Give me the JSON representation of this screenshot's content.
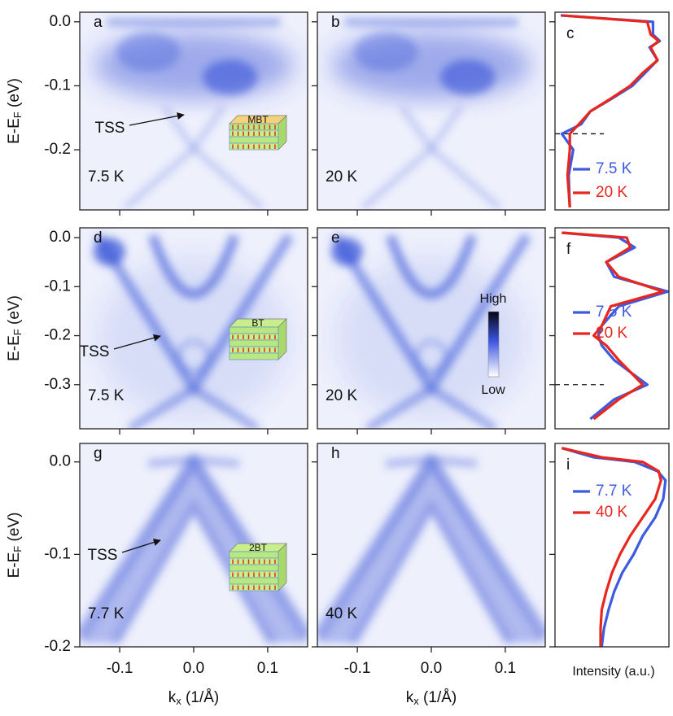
{
  "axes": {
    "ylabel": [
      "E-E",
      "F",
      " (eV)"
    ],
    "xlabel": [
      "k",
      "x",
      " (1/Å)"
    ],
    "intensity_label": "Intensity (a.u.)"
  },
  "chart_data": [
    {
      "type": "image",
      "panel": "a",
      "temperature": "7.5 K",
      "annotation": "TSS",
      "inset": "MBT",
      "xlim": [
        -0.154,
        0.154
      ],
      "ylim": [
        -0.294,
        0.015
      ],
      "xticks": [
        -0.1,
        {
          "value": 0,
          "label": "0.0"
        },
        0.1
      ],
      "yticks": [
        {
          "value": 0,
          "label": "0.0"
        },
        -0.1,
        -0.2
      ],
      "ytick_labels": true
    },
    {
      "type": "image",
      "panel": "b",
      "temperature": "20 K",
      "xlim": [
        -0.154,
        0.154
      ],
      "ylim": [
        -0.294,
        0.015
      ],
      "xticks": [
        -0.1,
        {
          "value": 0,
          "label": "0.0"
        },
        0.1
      ],
      "yticks": [
        {
          "value": 0,
          "label": "0.0"
        },
        -0.1,
        -0.2
      ]
    },
    {
      "type": "line",
      "panel": "c",
      "xlim": [
        0,
        1
      ],
      "ylim": [
        -0.294,
        0.015
      ],
      "yticks": [
        {
          "value": 0,
          "label": "0.0"
        },
        -0.1,
        -0.2
      ],
      "hlines": [
        -0.175
      ],
      "y": [
        0.01,
        0.0,
        -0.02,
        -0.03,
        -0.04,
        -0.06,
        -0.08,
        -0.1,
        -0.12,
        -0.14,
        -0.16,
        -0.175,
        -0.2,
        -0.24,
        -0.29
      ],
      "series": [
        {
          "name": "7.5 K",
          "color": "#3c5be0",
          "values": [
            0.05,
            0.86,
            0.86,
            0.92,
            0.83,
            0.9,
            0.79,
            0.68,
            0.5,
            0.31,
            0.23,
            0.06,
            0.16,
            0.12,
            0.13
          ]
        },
        {
          "name": "20 K",
          "color": "#e8261c",
          "values": [
            0.06,
            0.81,
            0.84,
            0.91,
            0.84,
            0.9,
            0.77,
            0.66,
            0.49,
            0.31,
            0.21,
            0.13,
            0.13,
            0.11,
            0.13
          ]
        }
      ]
    },
    {
      "type": "image",
      "panel": "d",
      "temperature": "7.5 K",
      "annotation": "TSS",
      "inset": "BT",
      "xlim": [
        -0.154,
        0.154
      ],
      "ylim": [
        -0.39,
        0.02
      ],
      "xticks": [
        -0.1,
        {
          "value": 0,
          "label": "0.0"
        },
        0.1
      ],
      "yticks": [
        {
          "value": 0,
          "label": "0.0"
        },
        -0.1,
        -0.2,
        -0.3
      ],
      "ytick_labels": true
    },
    {
      "type": "image",
      "panel": "e",
      "temperature": "20 K",
      "colorbar": {
        "high": "High",
        "low": "Low"
      },
      "xlim": [
        -0.154,
        0.154
      ],
      "ylim": [
        -0.39,
        0.02
      ],
      "xticks": [
        -0.1,
        {
          "value": 0,
          "label": "0.0"
        },
        0.1
      ],
      "yticks": [
        {
          "value": 0,
          "label": "0.0"
        },
        -0.1,
        -0.2,
        -0.3
      ]
    },
    {
      "type": "line",
      "panel": "f",
      "xlim": [
        0,
        1
      ],
      "ylim": [
        -0.39,
        0.02
      ],
      "yticks": [
        {
          "value": 0,
          "label": "0.0"
        },
        -0.1,
        -0.2,
        -0.3
      ],
      "hlines": [
        -0.3
      ],
      "y": [
        0.01,
        0.0,
        -0.02,
        -0.05,
        -0.08,
        -0.11,
        -0.14,
        -0.18,
        -0.2,
        -0.22,
        -0.25,
        -0.3,
        -0.33,
        -0.37
      ],
      "series": [
        {
          "name": "7.5 K",
          "color": "#3c5be0",
          "values": [
            0.06,
            0.56,
            0.7,
            0.45,
            0.52,
            0.99,
            0.56,
            0.41,
            0.38,
            0.41,
            0.52,
            0.81,
            0.52,
            0.31
          ]
        },
        {
          "name": "20 K",
          "color": "#e8261c",
          "values": [
            0.06,
            0.63,
            0.66,
            0.45,
            0.56,
            0.95,
            0.49,
            0.41,
            0.34,
            0.45,
            0.56,
            0.77,
            0.56,
            0.34
          ]
        }
      ]
    },
    {
      "type": "image",
      "panel": "g",
      "temperature": "7.7 K",
      "annotation": "TSS",
      "inset": "2BT",
      "xlim": [
        -0.154,
        0.154
      ],
      "ylim": [
        -0.2,
        0.02
      ],
      "xticks": [
        -0.1,
        {
          "value": 0,
          "label": "0.0"
        },
        0.1
      ],
      "yticks": [
        {
          "value": 0,
          "label": "0.0"
        },
        -0.1,
        -0.2
      ],
      "ytick_labels": true,
      "xtick_labels": true
    },
    {
      "type": "image",
      "panel": "h",
      "temperature": "40 K",
      "xlim": [
        -0.154,
        0.154
      ],
      "ylim": [
        -0.2,
        0.02
      ],
      "xticks": [
        -0.1,
        {
          "value": 0,
          "label": "0.0"
        },
        0.1
      ],
      "yticks": [
        {
          "value": 0,
          "label": "0.0"
        },
        -0.1,
        -0.2
      ],
      "xtick_labels": true
    },
    {
      "type": "line",
      "panel": "i",
      "xlim": [
        0,
        1
      ],
      "ylim": [
        -0.2,
        0.02
      ],
      "yticks": [
        {
          "value": 0,
          "label": "0.0"
        },
        -0.1,
        -0.2
      ],
      "y": [
        0.015,
        0.005,
        0.0,
        -0.01,
        -0.02,
        -0.04,
        -0.06,
        -0.08,
        -0.1,
        -0.12,
        -0.14,
        -0.16,
        -0.18,
        -0.2
      ],
      "series": [
        {
          "name": "7.7 K",
          "color": "#3c5be0",
          "values": [
            0.06,
            0.34,
            0.7,
            0.9,
            0.97,
            0.95,
            0.88,
            0.77,
            0.69,
            0.59,
            0.52,
            0.47,
            0.43,
            0.41
          ]
        },
        {
          "name": "40 K",
          "color": "#e8261c",
          "values": [
            0.06,
            0.41,
            0.77,
            0.91,
            0.93,
            0.88,
            0.77,
            0.66,
            0.57,
            0.5,
            0.45,
            0.41,
            0.4,
            0.4
          ]
        }
      ]
    }
  ]
}
